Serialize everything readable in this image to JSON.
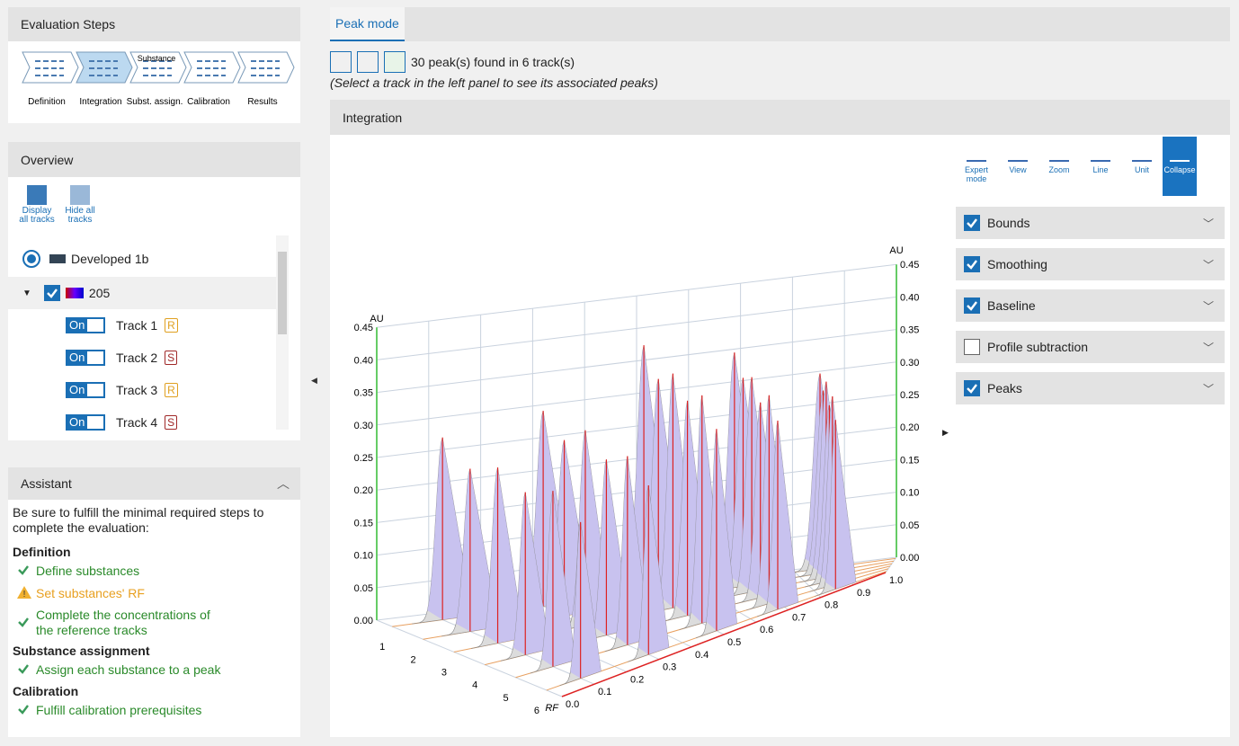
{
  "evaluation_steps": {
    "title": "Evaluation Steps",
    "icon_label": "Substance",
    "steps": [
      "Definition",
      "Integration",
      "Subst. assign.",
      "Calibration",
      "Results"
    ],
    "active": 1
  },
  "overview": {
    "title": "Overview",
    "buttons": [
      "Display all tracks",
      "Hide all tracks"
    ],
    "plate": "Developed 1b",
    "group": "205",
    "tracks": [
      {
        "name": "Track 1",
        "toggle": "On",
        "type": "R"
      },
      {
        "name": "Track 2",
        "toggle": "On",
        "type": "S"
      },
      {
        "name": "Track 3",
        "toggle": "On",
        "type": "R"
      },
      {
        "name": "Track 4",
        "toggle": "On",
        "type": "S"
      }
    ]
  },
  "assistant": {
    "title": "Assistant",
    "intro": "Be sure to fulfill the minimal required steps to complete the evaluation:",
    "sections": [
      {
        "heading": "Definition",
        "items": [
          {
            "text": "Define substances",
            "status": "done"
          },
          {
            "text": "Set substances' RF",
            "status": "warning"
          },
          {
            "text": "Complete the concentrations of the reference tracks",
            "status": "done"
          }
        ]
      },
      {
        "heading": "Substance assignment",
        "items": [
          {
            "text": "Assign each substance to a peak",
            "status": "done"
          }
        ]
      },
      {
        "heading": "Calibration",
        "items": [
          {
            "text": "Fulfill calibration prerequisites",
            "status": "done"
          }
        ]
      }
    ]
  },
  "peak_mode": {
    "tab": "Peak mode",
    "summary": "30 peak(s) found in 6 track(s)",
    "hint": "(Select a track in the left panel to see its associated peaks)"
  },
  "integration": {
    "title": "Integration",
    "toolbar": [
      "Expert mode",
      "View",
      "Zoom",
      "Line",
      "Unit",
      "Collapse"
    ],
    "options": [
      {
        "label": "Bounds",
        "checked": true
      },
      {
        "label": "Smoothing",
        "checked": true
      },
      {
        "label": "Baseline",
        "checked": true
      },
      {
        "label": "Profile subtraction",
        "checked": false
      },
      {
        "label": "Peaks",
        "checked": true
      }
    ]
  },
  "chart_data": {
    "type": "profile3d",
    "y_label": "AU",
    "ylim": [
      0,
      0.45
    ],
    "yticks": [
      {
        "value": 0,
        "label": "0.00"
      },
      {
        "value": 0.05,
        "label": "0.05"
      },
      {
        "value": 0.1,
        "label": "0.10"
      },
      {
        "value": 0.15,
        "label": "0.15"
      },
      {
        "value": 0.2,
        "label": "0.20"
      },
      {
        "value": 0.25,
        "label": "0.25"
      },
      {
        "value": 0.3,
        "label": "0.30"
      },
      {
        "value": 0.35,
        "label": "0.35"
      },
      {
        "value": 0.4,
        "label": "0.40"
      },
      {
        "value": 0.45,
        "label": "0.45"
      }
    ],
    "track_ticks": [
      1,
      2,
      3,
      4,
      5,
      6
    ],
    "rf_label": "RF",
    "rflim": [
      0,
      1
    ],
    "rf_ticks": [
      {
        "value": 0,
        "label": "0.0"
      },
      {
        "value": 0.1,
        "label": "0.1"
      },
      {
        "value": 0.2,
        "label": "0.2"
      },
      {
        "value": 0.3,
        "label": "0.3"
      },
      {
        "value": 0.4,
        "label": "0.4"
      },
      {
        "value": 0.5,
        "label": "0.5"
      },
      {
        "value": 0.6,
        "label": "0.6"
      },
      {
        "value": 0.7,
        "label": "0.7"
      },
      {
        "value": 0.8,
        "label": "0.8"
      },
      {
        "value": 0.9,
        "label": "0.9"
      },
      {
        "value": 1,
        "label": "1.0"
      }
    ],
    "tracks": [
      {
        "peak_rf": [
          0.1,
          0.3,
          0.5,
          0.68,
          0.85
        ],
        "heights": [
          0.28,
          0.3,
          0.38,
          0.35,
          0.3
        ]
      },
      {
        "peak_rf": [
          0.1,
          0.3,
          0.5,
          0.68,
          0.85
        ],
        "heights": [
          0.25,
          0.27,
          0.34,
          0.32,
          0.28
        ]
      },
      {
        "peak_rf": [
          0.1,
          0.3,
          0.5,
          0.68,
          0.85
        ],
        "heights": [
          0.27,
          0.3,
          0.36,
          0.33,
          0.3
        ]
      },
      {
        "peak_rf": [
          0.1,
          0.3,
          0.5,
          0.68,
          0.85
        ],
        "heights": [
          0.25,
          0.27,
          0.33,
          0.3,
          0.27
        ]
      },
      {
        "peak_rf": [
          0.1,
          0.3,
          0.5,
          0.68,
          0.85
        ],
        "heights": [
          0.27,
          0.29,
          0.35,
          0.32,
          0.29
        ]
      },
      {
        "peak_rf": [
          0.1,
          0.3,
          0.5,
          0.68,
          0.85
        ],
        "heights": [
          0.24,
          0.26,
          0.31,
          0.29,
          0.26
        ]
      }
    ]
  }
}
